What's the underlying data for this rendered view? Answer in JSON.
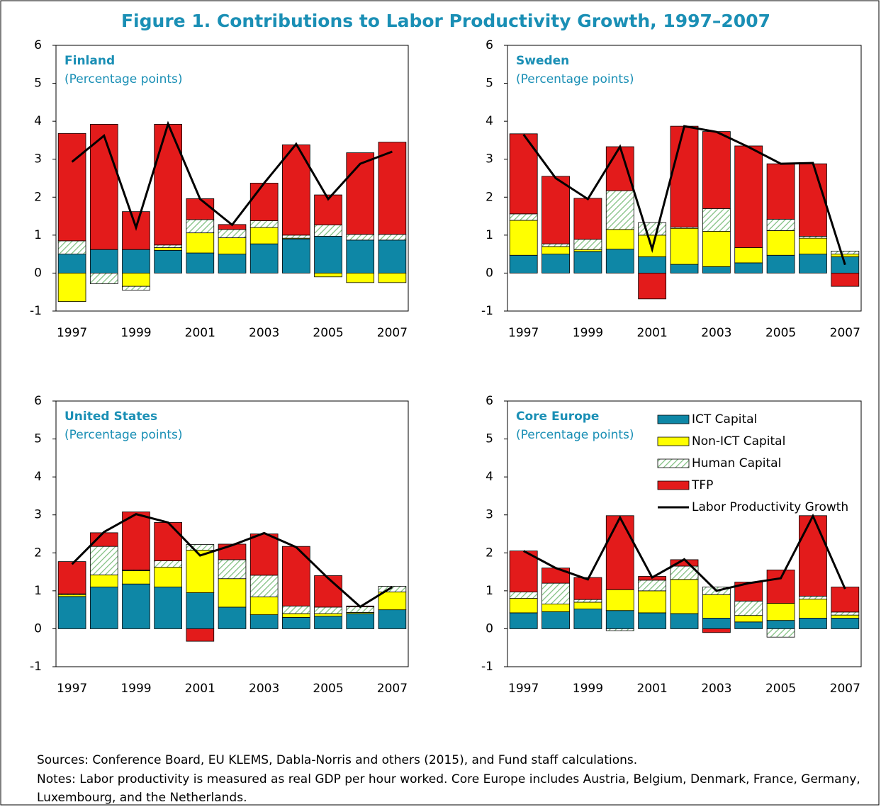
{
  "title": "Figure 1. Contributions to Labor Productivity Growth, 1997–2007",
  "sources": "Sources: Conference Board, EU KLEMS, Dabla-Norris and others (2015), and Fund staff calculations.",
  "notes": "Notes: Labor productivity is measured as real GDP per hour worked. Core Europe includes Austria, Belgium, Denmark, France, Germany, Luxembourg, and the Netherlands.",
  "chart_data": [
    {
      "type": "bar",
      "title": "Finland",
      "subtitle": "(Percentage points)",
      "categories": [
        "1997",
        null,
        "1999",
        null,
        "2001",
        null,
        "2003",
        null,
        "2005",
        null,
        "2007"
      ],
      "ylim": [
        -1,
        6
      ],
      "yticks": [
        -1,
        0,
        1,
        2,
        3,
        4,
        5,
        6
      ],
      "series": [
        {
          "color": "#0e87a6",
          "values": [
            0.5,
            0.62,
            0.62,
            0.6,
            0.53,
            0.5,
            0.77,
            0.9,
            0.97,
            0.87,
            0.87
          ]
        },
        {
          "color": "#ffff00",
          "values": [
            -0.75,
            0,
            -0.35,
            0.07,
            0.53,
            0.43,
            0.43,
            0.02,
            -0.1,
            -0.25,
            -0.25
          ]
        },
        {
          "color": "#7fbf7f",
          "hatch": true,
          "values": [
            0.35,
            -0.28,
            -0.1,
            0.07,
            0.35,
            0.22,
            0.18,
            0.08,
            0.3,
            0.15,
            0.15
          ]
        },
        {
          "color": "#e31b1b",
          "values": [
            2.83,
            3.3,
            1.0,
            3.18,
            0.55,
            0.13,
            0.99,
            2.38,
            0.79,
            2.15,
            2.43
          ]
        },
        {
          "type": "line",
          "color": "#000000",
          "values": [
            2.93,
            3.62,
            1.2,
            3.93,
            1.95,
            1.27,
            2.37,
            3.4,
            1.95,
            2.88,
            3.2
          ]
        }
      ]
    },
    {
      "type": "bar",
      "title": "Sweden",
      "subtitle": "(Percentage points)",
      "categories": [
        "1997",
        null,
        "1999",
        null,
        "2001",
        null,
        "2003",
        null,
        "2005",
        null,
        "2007"
      ],
      "ylim": [
        -1,
        6
      ],
      "yticks": [
        -1,
        0,
        1,
        2,
        3,
        4,
        5,
        6
      ],
      "series": [
        {
          "color": "#0e87a6",
          "values": [
            0.47,
            0.5,
            0.57,
            0.63,
            0.43,
            0.23,
            0.17,
            0.27,
            0.47,
            0.5,
            0.43
          ]
        },
        {
          "color": "#ffff00",
          "values": [
            0.92,
            0.2,
            0.05,
            0.52,
            0.57,
            0.95,
            0.93,
            0.4,
            0.65,
            0.42,
            0.07
          ]
        },
        {
          "color": "#7fbf7f",
          "hatch": true,
          "values": [
            0.17,
            0.07,
            0.27,
            1.02,
            0.33,
            0.03,
            0.6,
            0,
            0.3,
            0.05,
            0.08
          ]
        },
        {
          "color": "#e31b1b",
          "values": [
            2.11,
            1.78,
            1.08,
            1.16,
            -0.68,
            2.66,
            2.03,
            2.68,
            1.46,
            1.91,
            -0.35
          ]
        },
        {
          "type": "line",
          "color": "#000000",
          "values": [
            3.65,
            2.5,
            1.95,
            3.33,
            0.63,
            3.87,
            3.72,
            3.32,
            2.88,
            2.9,
            0.22
          ]
        }
      ]
    },
    {
      "type": "bar",
      "title": "United States",
      "subtitle": "(Percentage points)",
      "categories": [
        "1997",
        null,
        "1999",
        null,
        "2001",
        null,
        "2003",
        null,
        "2005",
        null,
        "2007"
      ],
      "ylim": [
        -1,
        6
      ],
      "yticks": [
        -1,
        0,
        1,
        2,
        3,
        4,
        5,
        6
      ],
      "series": [
        {
          "color": "#0e87a6",
          "values": [
            0.85,
            1.1,
            1.18,
            1.1,
            0.95,
            0.57,
            0.37,
            0.3,
            0.33,
            0.4,
            0.5
          ]
        },
        {
          "color": "#ffff00",
          "values": [
            0.05,
            0.32,
            0.35,
            0.52,
            1.12,
            0.75,
            0.47,
            0.1,
            0.07,
            0.03,
            0.47
          ]
        },
        {
          "color": "#7fbf7f",
          "hatch": true,
          "values": [
            0.02,
            0.75,
            0.02,
            0.17,
            0.15,
            0.5,
            0.57,
            0.2,
            0.17,
            0.15,
            0.15
          ]
        },
        {
          "color": "#e31b1b",
          "values": [
            0.85,
            0.36,
            1.53,
            1.01,
            -0.33,
            0.41,
            1.09,
            1.57,
            0.83,
            0.02,
            0
          ]
        },
        {
          "type": "line",
          "color": "#000000",
          "values": [
            1.7,
            2.55,
            3.02,
            2.8,
            1.93,
            2.2,
            2.52,
            2.15,
            1.33,
            0.58,
            1.1
          ]
        }
      ]
    },
    {
      "type": "bar",
      "title": "Core Europe",
      "subtitle": "(Percentage points)",
      "legend": "upper right",
      "categories": [
        "1997",
        null,
        "1999",
        null,
        "2001",
        null,
        "2003",
        null,
        "2005",
        null,
        "2007"
      ],
      "ylim": [
        -1,
        6
      ],
      "yticks": [
        -1,
        0,
        1,
        2,
        3,
        4,
        5,
        6
      ],
      "series": [
        {
          "name": "ICT Capital",
          "color": "#0e87a6",
          "values": [
            0.42,
            0.45,
            0.52,
            0.48,
            0.42,
            0.4,
            0.28,
            0.18,
            0.22,
            0.28,
            0.28
          ]
        },
        {
          "name": "Non-ICT Capital",
          "color": "#ffff00",
          "values": [
            0.38,
            0.2,
            0.18,
            0.55,
            0.58,
            0.9,
            0.62,
            0.17,
            0.45,
            0.5,
            0.08
          ]
        },
        {
          "name": "Human Capital",
          "color": "#7fbf7f",
          "hatch": true,
          "values": [
            0.17,
            0.55,
            0.07,
            -0.05,
            0.28,
            0.35,
            0.2,
            0.38,
            -0.22,
            0.08,
            0.08
          ]
        },
        {
          "name": "TFP",
          "color": "#e31b1b",
          "values": [
            1.08,
            0.4,
            0.58,
            1.95,
            0.1,
            0.17,
            -0.1,
            0.5,
            0.88,
            2.12,
            0.66
          ]
        },
        {
          "name": "Labor Productivity Growth",
          "type": "line",
          "color": "#000000",
          "values": [
            2.05,
            1.6,
            1.3,
            2.93,
            1.35,
            1.83,
            1.0,
            1.2,
            1.33,
            2.97,
            1.05
          ]
        }
      ]
    }
  ]
}
